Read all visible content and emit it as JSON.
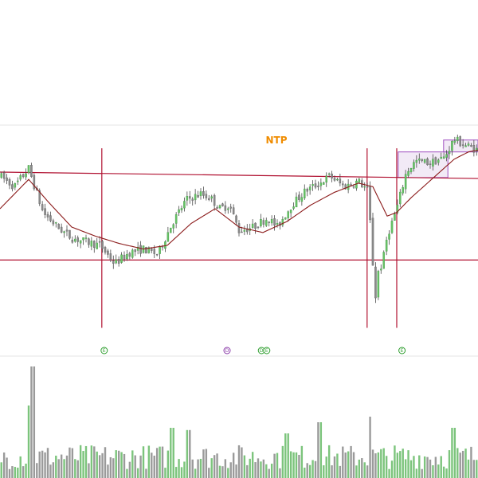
{
  "chart_data": {
    "type": "candlestick",
    "title": "NTP",
    "colors": {
      "title": "#f08c00",
      "up": "#66c266",
      "down": "#8a8a8a",
      "wick": "#4a4a4a",
      "moving_average": "#8b1a1a",
      "levels": "#b01030",
      "box_stroke": "#a050c0",
      "box_fill": "#e8d8ee",
      "marker_green": "#2e9e2e",
      "marker_purple": "#8a3aa8",
      "volume_up": "#7cc47c",
      "volume_down": "#9a9a9a"
    },
    "horizontal_levels": [
      {
        "name": "resistance",
        "y_start": 0.8,
        "y_end": 0.765,
        "color": "#b01030"
      },
      {
        "name": "support",
        "y_start": 0.32,
        "y_end": 0.32,
        "color": "#b01030"
      }
    ],
    "vertical_events": [
      0.213,
      0.768,
      0.83
    ],
    "event_markers": [
      {
        "label": "E",
        "x": 0.218,
        "color": "#2e9e2e"
      },
      {
        "label": "D",
        "x": 0.475,
        "color": "#8a3aa8"
      },
      {
        "label": "D",
        "x": 0.547,
        "color": "#2e9e2e"
      },
      {
        "label": "E",
        "x": 0.558,
        "color": "#2e9e2e"
      },
      {
        "label": "E",
        "x": 0.841,
        "color": "#2e9e2e"
      }
    ],
    "boxes": [
      {
        "x0": 0.833,
        "x1": 0.937,
        "y_top": 0.91,
        "y_bottom": 0.77
      },
      {
        "x0": 0.928,
        "x1": 1.0,
        "y_top": 0.975,
        "y_bottom": 0.91
      }
    ],
    "price_anchors": [
      [
        0.0,
        0.78
      ],
      [
        0.03,
        0.72
      ],
      [
        0.06,
        0.82
      ],
      [
        0.09,
        0.58
      ],
      [
        0.12,
        0.5
      ],
      [
        0.15,
        0.44
      ],
      [
        0.18,
        0.42
      ],
      [
        0.21,
        0.4
      ],
      [
        0.24,
        0.3
      ],
      [
        0.27,
        0.36
      ],
      [
        0.3,
        0.38
      ],
      [
        0.33,
        0.35
      ],
      [
        0.36,
        0.52
      ],
      [
        0.39,
        0.65
      ],
      [
        0.42,
        0.68
      ],
      [
        0.44,
        0.66
      ],
      [
        0.46,
        0.6
      ],
      [
        0.48,
        0.62
      ],
      [
        0.5,
        0.48
      ],
      [
        0.53,
        0.5
      ],
      [
        0.56,
        0.55
      ],
      [
        0.58,
        0.5
      ],
      [
        0.61,
        0.62
      ],
      [
        0.64,
        0.7
      ],
      [
        0.67,
        0.74
      ],
      [
        0.69,
        0.78
      ],
      [
        0.72,
        0.72
      ],
      [
        0.75,
        0.75
      ],
      [
        0.77,
        0.7
      ],
      [
        0.785,
        0.1
      ],
      [
        0.79,
        0.25
      ],
      [
        0.8,
        0.3
      ],
      [
        0.81,
        0.45
      ],
      [
        0.83,
        0.6
      ],
      [
        0.85,
        0.8
      ],
      [
        0.87,
        0.86
      ],
      [
        0.9,
        0.85
      ],
      [
        0.93,
        0.88
      ],
      [
        0.95,
        0.98
      ],
      [
        0.97,
        0.95
      ],
      [
        1.0,
        0.92
      ]
    ],
    "moving_average": [
      [
        0.0,
        0.6
      ],
      [
        0.06,
        0.76
      ],
      [
        0.1,
        0.64
      ],
      [
        0.15,
        0.5
      ],
      [
        0.2,
        0.45
      ],
      [
        0.25,
        0.41
      ],
      [
        0.3,
        0.38
      ],
      [
        0.35,
        0.4
      ],
      [
        0.4,
        0.52
      ],
      [
        0.45,
        0.6
      ],
      [
        0.5,
        0.5
      ],
      [
        0.55,
        0.47
      ],
      [
        0.6,
        0.53
      ],
      [
        0.65,
        0.62
      ],
      [
        0.7,
        0.69
      ],
      [
        0.75,
        0.74
      ],
      [
        0.78,
        0.72
      ],
      [
        0.81,
        0.56
      ],
      [
        0.83,
        0.58
      ],
      [
        0.86,
        0.66
      ],
      [
        0.89,
        0.73
      ],
      [
        0.92,
        0.8
      ],
      [
        0.95,
        0.87
      ],
      [
        0.98,
        0.91
      ],
      [
        1.0,
        0.92
      ]
    ],
    "candle_count": 175,
    "volume_peaks": [
      {
        "x": 0.068,
        "v": 1.0
      },
      {
        "x": 0.06,
        "v": 0.65
      },
      {
        "x": 0.775,
        "v": 0.55
      },
      {
        "x": 0.668,
        "v": 0.5
      },
      {
        "x": 0.36,
        "v": 0.45
      },
      {
        "x": 0.395,
        "v": 0.43
      },
      {
        "x": 0.6,
        "v": 0.4
      },
      {
        "x": 0.95,
        "v": 0.45
      }
    ]
  }
}
